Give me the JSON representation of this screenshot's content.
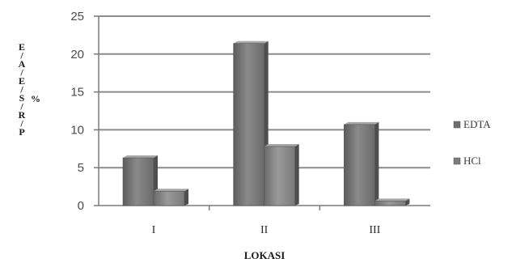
{
  "chart_data": {
    "type": "bar",
    "categories": [
      "I",
      "II",
      "III"
    ],
    "series": [
      {
        "name": "EDTA",
        "values": [
          6.3,
          21.4,
          10.7
        ],
        "color": "#6e6e6e"
      },
      {
        "name": "HCl",
        "values": [
          1.9,
          7.8,
          0.6
        ],
        "color": "#7c7c7c"
      }
    ],
    "xlabel": "LOKASI",
    "ylabel_letters": [
      "E",
      "/",
      "A",
      "/",
      "E",
      "/",
      "S",
      "/",
      "R",
      "/",
      "P"
    ],
    "ylabel_unit": "%",
    "ylim": [
      0,
      25
    ],
    "yticks": [
      0,
      5,
      10,
      15,
      20,
      25
    ],
    "grid": true,
    "legend_position": "right",
    "legend_entries": [
      "EDTA",
      "HCl"
    ]
  }
}
